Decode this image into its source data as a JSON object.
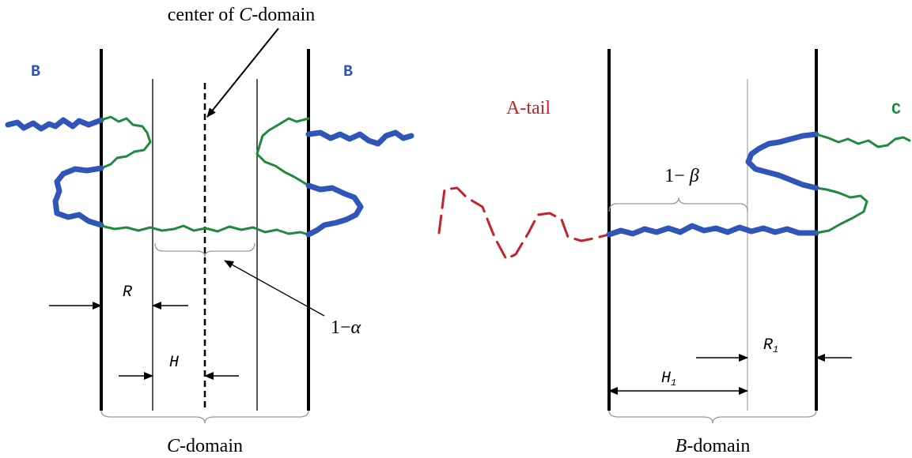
{
  "top_label": {
    "before": "center of ",
    "italic": "C",
    "after": "-domain"
  },
  "left_panel": {
    "labels": {
      "b_left": "B",
      "b_right": "B"
    },
    "alpha": {
      "prefix": "1−",
      "symbol": "α"
    },
    "r": "R",
    "h": "H",
    "domain": {
      "italic": "C",
      "after": "-domain"
    }
  },
  "right_panel": {
    "labels": {
      "a_tail": "A-tail",
      "c": "C"
    },
    "beta": {
      "prefix": "1− ",
      "symbol": "β"
    },
    "r1": {
      "symbol": "R",
      "sub": "1"
    },
    "h1": {
      "symbol": "H",
      "sub": "1"
    },
    "domain": {
      "italic": "B",
      "after": "-domain"
    }
  }
}
